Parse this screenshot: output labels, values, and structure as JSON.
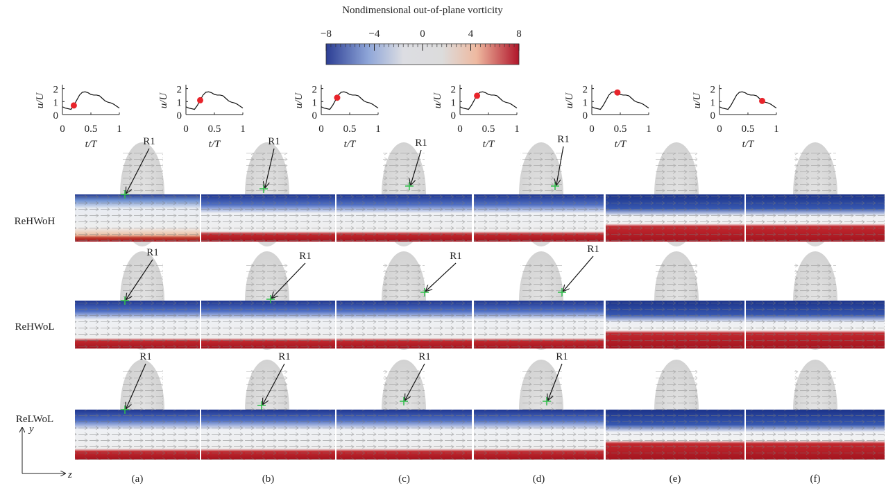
{
  "colorbar": {
    "title": "Nondimensional out-of-plane vorticity",
    "lim": [
      -8,
      8
    ],
    "ticks": [
      {
        "value": -8,
        "label": "−8"
      },
      {
        "value": -4,
        "label": "−4"
      },
      0,
      4,
      8
    ]
  },
  "waveform": {
    "xlabel": "t/T",
    "ylabel": "u/U",
    "xlim": [
      0,
      1
    ],
    "ylim": [
      0,
      2.3
    ],
    "xticks": [
      0,
      0.5,
      1
    ],
    "yticks": [
      0,
      1,
      2
    ],
    "x": [
      0,
      0.05,
      0.1,
      0.15,
      0.2,
      0.25,
      0.3,
      0.35,
      0.4,
      0.45,
      0.5,
      0.55,
      0.6,
      0.65,
      0.7,
      0.75,
      0.8,
      0.85,
      0.9,
      0.95,
      1
    ],
    "y": [
      0.6,
      0.5,
      0.45,
      0.4,
      0.7,
      1.1,
      1.5,
      1.72,
      1.75,
      1.68,
      1.55,
      1.5,
      1.5,
      1.45,
      1.25,
      1.05,
      0.95,
      0.9,
      0.8,
      0.65,
      0.5
    ]
  },
  "insets": [
    {
      "t": 0.2,
      "u": 0.7
    },
    {
      "t": 0.25,
      "u": 1.1
    },
    {
      "t": 0.28,
      "u": 1.3
    },
    {
      "t": 0.3,
      "u": 1.45
    },
    {
      "t": 0.45,
      "u": 1.7
    },
    {
      "t": 0.75,
      "u": 1.05
    }
  ],
  "rows": [
    "ReHWoH",
    "ReHWoL",
    "ReLWoL"
  ],
  "panels": [
    "(a)",
    "(b)",
    "(c)",
    "(d)",
    "(e)",
    "(f)"
  ],
  "marker_label": "R1",
  "axes": {
    "y": "y",
    "z": "z"
  }
}
